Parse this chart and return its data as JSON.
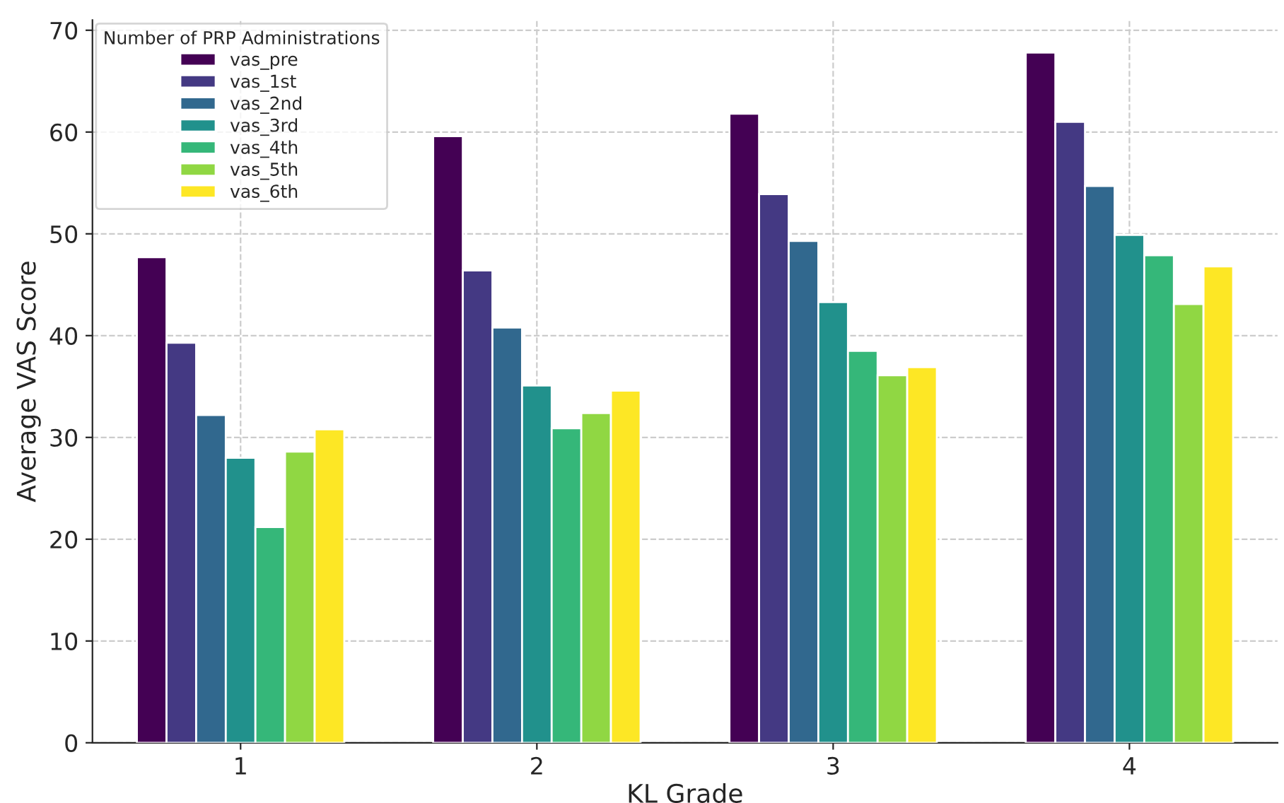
{
  "chart_data": {
    "type": "bar",
    "xlabel": "KL Grade",
    "ylabel": "Average VAS Score",
    "legend_title": "Number of PRP Administrations",
    "categories": [
      "1",
      "2",
      "3",
      "4"
    ],
    "series": [
      {
        "name": "vas_pre",
        "color": "#440154",
        "values": [
          47.7,
          59.6,
          61.8,
          67.8
        ]
      },
      {
        "name": "vas_1st",
        "color": "#443983",
        "values": [
          39.3,
          46.4,
          53.9,
          61.0
        ]
      },
      {
        "name": "vas_2nd",
        "color": "#31688e",
        "values": [
          32.2,
          40.8,
          49.3,
          54.7
        ]
      },
      {
        "name": "vas_3rd",
        "color": "#21918c",
        "values": [
          28.0,
          35.1,
          43.3,
          49.9
        ]
      },
      {
        "name": "vas_4th",
        "color": "#35b779",
        "values": [
          21.2,
          30.9,
          38.5,
          47.9
        ]
      },
      {
        "name": "vas_5th",
        "color": "#90d743",
        "values": [
          28.6,
          32.4,
          36.1,
          43.1
        ]
      },
      {
        "name": "vas_6th",
        "color": "#fde725",
        "values": [
          30.8,
          34.6,
          36.9,
          46.8
        ]
      }
    ],
    "ylim": [
      0,
      71
    ],
    "yticks": [
      0,
      10,
      20,
      30,
      40,
      50,
      60,
      70
    ],
    "grid": true,
    "legend": "top left"
  }
}
